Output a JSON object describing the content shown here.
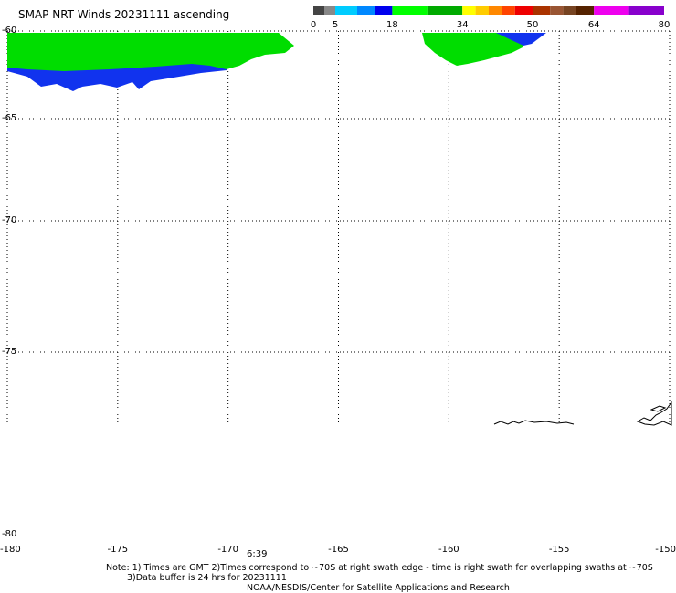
{
  "title": "SMAP NRT Winds 20231111 ascending",
  "colorbar": {
    "ticks": [
      "0",
      "5",
      "18",
      "34",
      "50",
      "64",
      "80"
    ],
    "values": [
      0,
      5,
      18,
      34,
      50,
      64,
      80
    ],
    "segments": [
      {
        "from": 0,
        "to": 2.5,
        "color": "#444444"
      },
      {
        "from": 2.5,
        "to": 5,
        "color": "#888888"
      },
      {
        "from": 5,
        "to": 10,
        "color": "#00ccff"
      },
      {
        "from": 10,
        "to": 14,
        "color": "#0088ff"
      },
      {
        "from": 14,
        "to": 18,
        "color": "#0000ee"
      },
      {
        "from": 18,
        "to": 26,
        "color": "#00ff00"
      },
      {
        "from": 26,
        "to": 34,
        "color": "#00aa00"
      },
      {
        "from": 34,
        "to": 37,
        "color": "#ffff00"
      },
      {
        "from": 37,
        "to": 40,
        "color": "#ffcc00"
      },
      {
        "from": 40,
        "to": 43,
        "color": "#ff8800"
      },
      {
        "from": 43,
        "to": 46,
        "color": "#ff4400"
      },
      {
        "from": 46,
        "to": 50,
        "color": "#ee0000"
      },
      {
        "from": 50,
        "to": 54,
        "color": "#aa3300"
      },
      {
        "from": 54,
        "to": 57,
        "color": "#995533"
      },
      {
        "from": 57,
        "to": 60,
        "color": "#774422"
      },
      {
        "from": 60,
        "to": 64,
        "color": "#552200"
      },
      {
        "from": 64,
        "to": 72,
        "color": "#ee00ee"
      },
      {
        "from": 72,
        "to": 80,
        "color": "#8800cc"
      }
    ]
  },
  "map": {
    "lon_range": [
      -180,
      -150
    ],
    "lat_range": [
      -80,
      -60
    ],
    "lon_ticks": [
      -180,
      -175,
      -170,
      -165,
      -160,
      -155,
      -150
    ],
    "lat_ticks": [
      -60,
      -65,
      -70,
      -75,
      -80
    ],
    "lon_labels": [
      "-180",
      "-175",
      "-170",
      "-165",
      "-160",
      "-155",
      "-150"
    ],
    "lat_labels": [
      "-60",
      "-65",
      "-70",
      "-75",
      "-80"
    ],
    "grid": true,
    "land_outline_color": "#000000",
    "swath_colors": {
      "green": "#00dd00",
      "blue": "#1133ee"
    }
  },
  "swath_time": "6:39",
  "notes": {
    "line1": "Note: 1) Times are GMT 2)Times correspond to ~70S at right swath edge - time is right swath for overlapping swaths at ~70S",
    "line2": "3)Data buffer is 24 hrs for 20231111",
    "line3": "NOAA/NESDIS/Center for Satellite Applications and Research"
  }
}
